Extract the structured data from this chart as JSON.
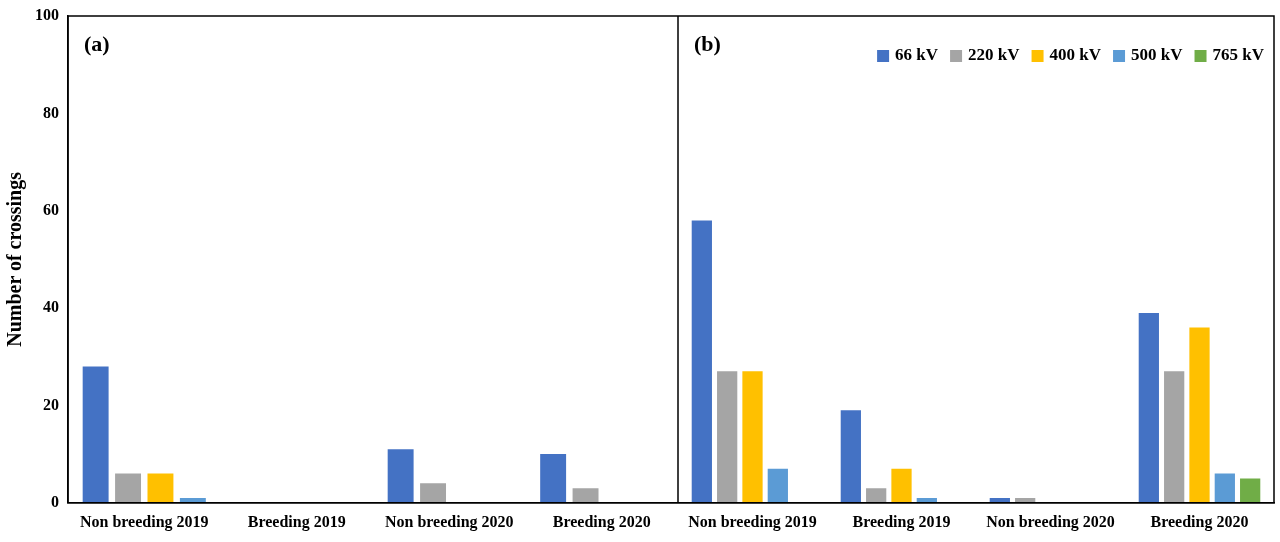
{
  "chart_data": [
    {
      "type": "bar",
      "ylabel": "Number of crossings",
      "annotations": [
        "(a)"
      ],
      "categories": [
        "Non breeding 2019",
        "Breeding 2019",
        "Non breeding 2020",
        "Breeding 2020"
      ],
      "ylim": [
        0,
        100
      ],
      "yticks": [
        0,
        20,
        40,
        60,
        80,
        100
      ],
      "grid": false,
      "legend": false,
      "series": [
        {
          "color": "#4472c4",
          "values": [
            28,
            0,
            11,
            10
          ]
        },
        {
          "color": "#a5a5a5",
          "values": [
            6,
            0,
            4,
            3
          ]
        },
        {
          "color": "#ffc000",
          "values": [
            6,
            0,
            0,
            0
          ]
        },
        {
          "color": "#5b9bd5",
          "values": [
            1,
            0,
            0,
            0
          ]
        }
      ]
    },
    {
      "type": "bar",
      "annotations": [
        "(b)"
      ],
      "categories": [
        "Non breeding 2019",
        "Breeding 2019",
        "Non breeding 2020",
        "Breeding 2020"
      ],
      "ylim": [
        0,
        100
      ],
      "yticks": [
        0,
        20,
        40,
        60,
        80,
        100
      ],
      "tick_labels": "x",
      "grid": false,
      "legend": "top right",
      "series": [
        {
          "name": "66 kV",
          "color": "#4472c4",
          "values": [
            58,
            19,
            1,
            39
          ]
        },
        {
          "name": "220 kV",
          "color": "#a5a5a5",
          "values": [
            27,
            3,
            1,
            27
          ]
        },
        {
          "name": "400 kV",
          "color": "#ffc000",
          "values": [
            27,
            7,
            0,
            36
          ]
        },
        {
          "name": "500 kV",
          "color": "#5b9bd5",
          "values": [
            7,
            1,
            0,
            6
          ]
        },
        {
          "name": "765 kV",
          "color": "#70ad47",
          "values": [
            0,
            0,
            0,
            5
          ]
        }
      ]
    }
  ]
}
